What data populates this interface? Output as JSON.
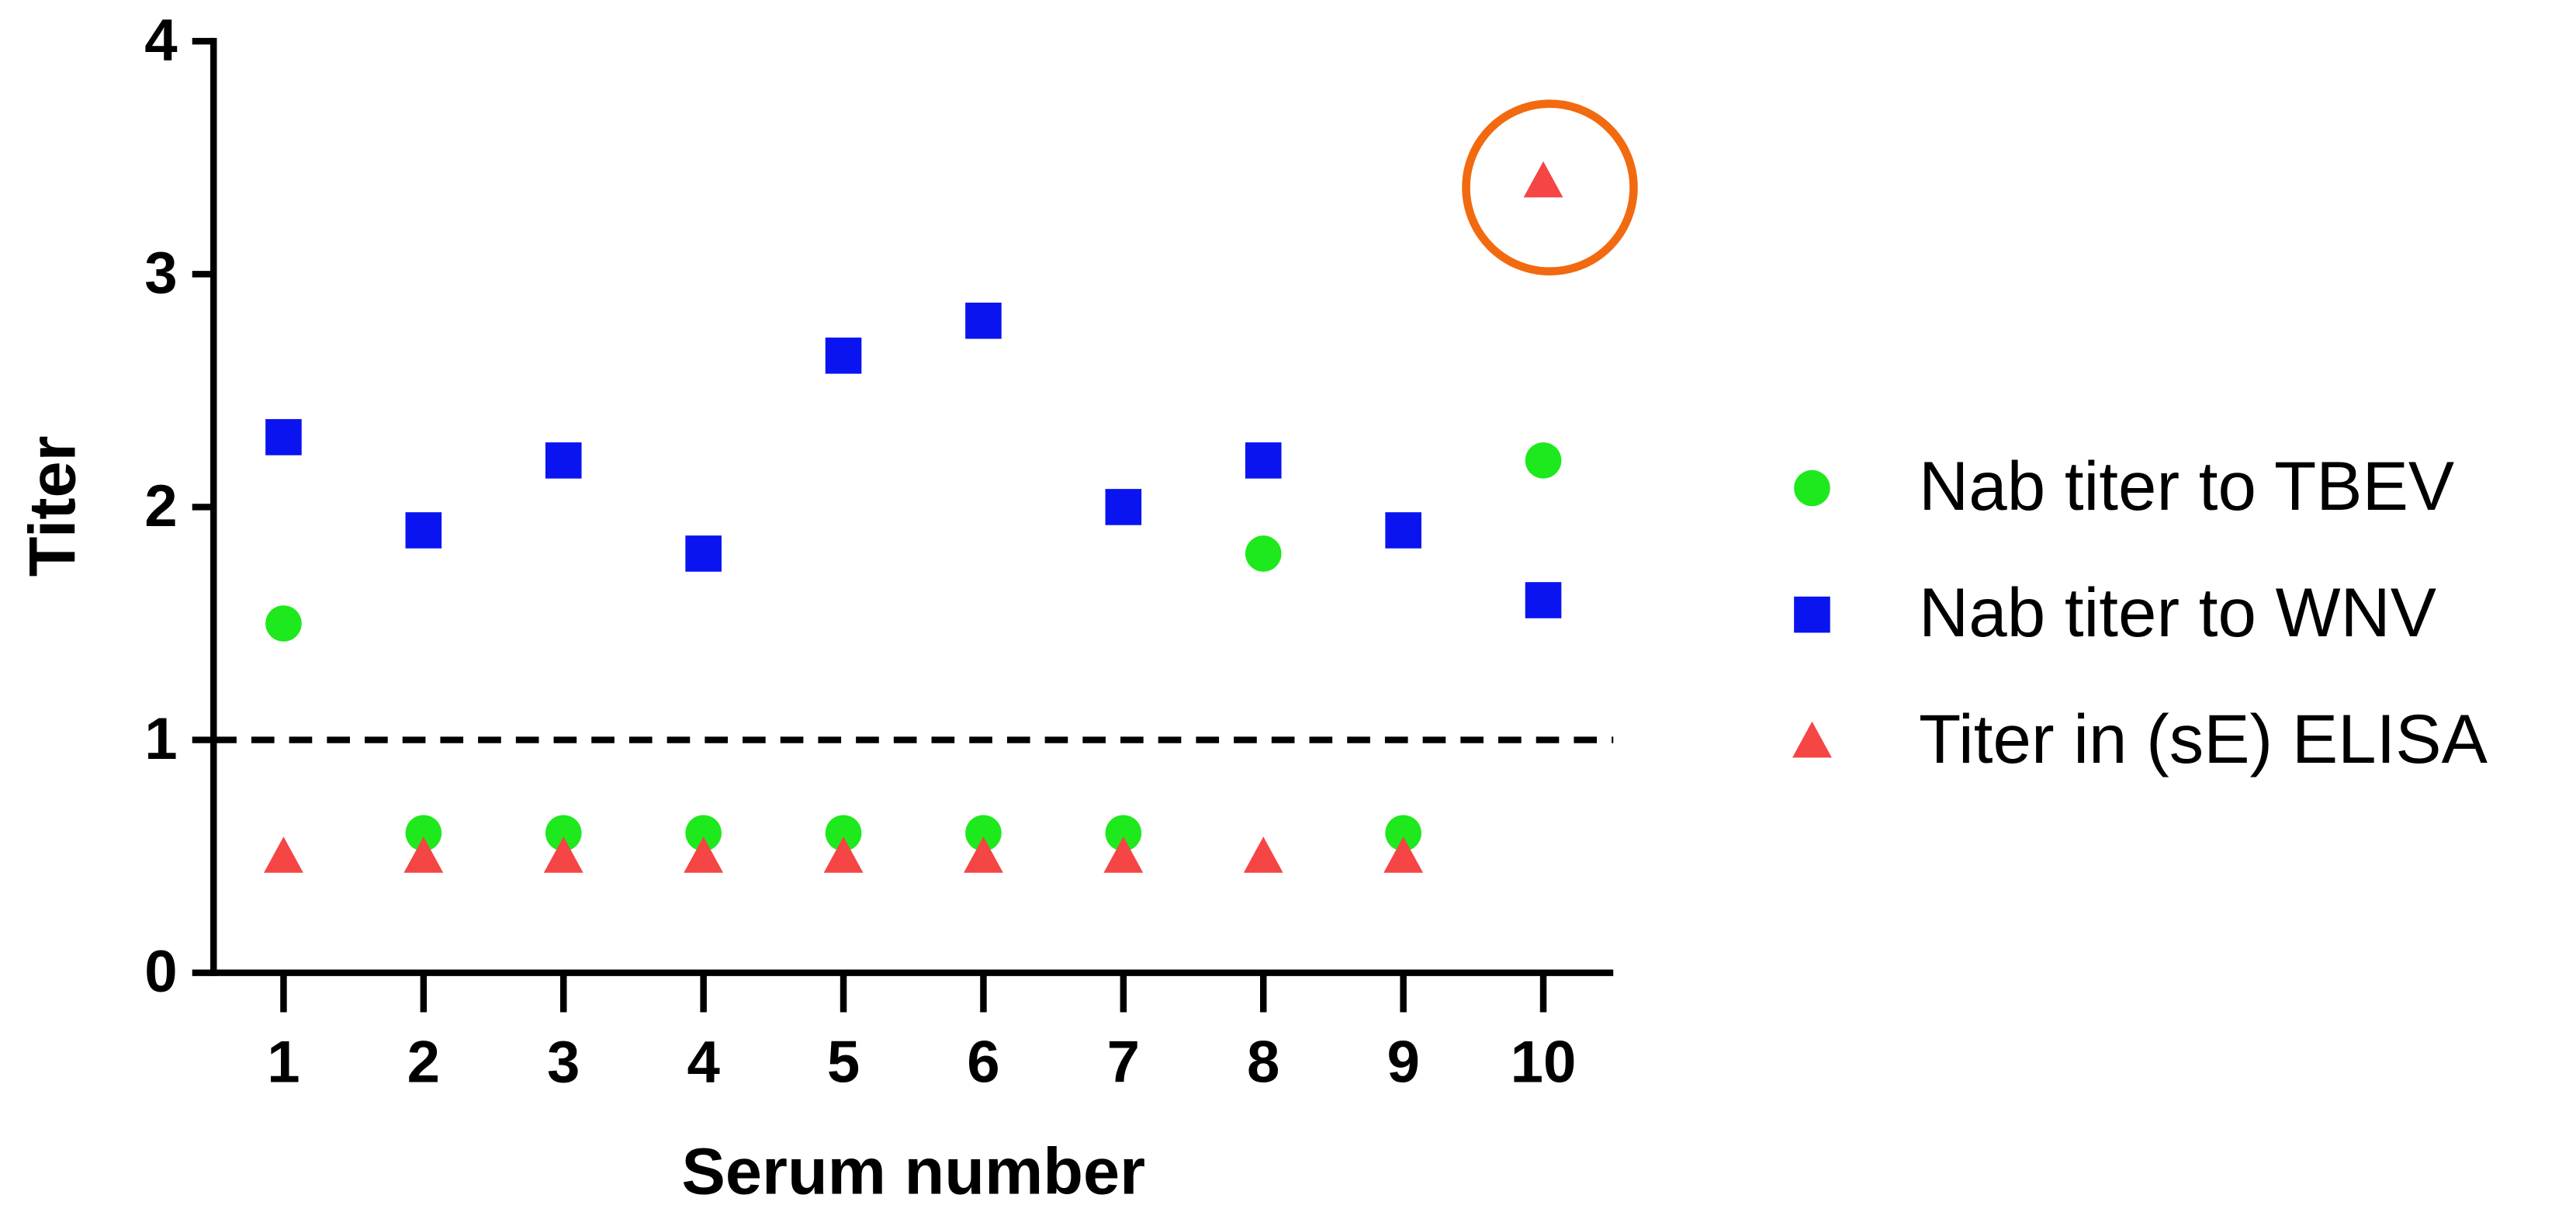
{
  "chart_data": {
    "type": "scatter",
    "x": [
      1,
      2,
      3,
      4,
      5,
      6,
      7,
      8,
      9,
      10
    ],
    "xlabel": "Serum number",
    "ylabel": "Titer",
    "xlim": [
      0.5,
      10.5
    ],
    "xticks": [
      1,
      2,
      3,
      4,
      5,
      6,
      7,
      8,
      9,
      10
    ],
    "ylim": [
      0,
      4
    ],
    "yticks": [
      0,
      1,
      2,
      3,
      4
    ],
    "reference_line": 1,
    "series": [
      {
        "name": "Nab titer to TBEV",
        "color": "#1de91d",
        "marker": "circle",
        "values": [
          1.5,
          0.6,
          0.6,
          0.6,
          0.6,
          0.6,
          0.6,
          1.8,
          0.6,
          2.2
        ]
      },
      {
        "name": "Nab titer to WNV",
        "color": "#0a14f0",
        "marker": "square",
        "values": [
          2.3,
          1.9,
          2.2,
          1.8,
          2.65,
          2.8,
          2.0,
          2.2,
          1.9,
          1.6
        ]
      },
      {
        "name": "Titer in (sE) ELISA",
        "color": "#f54545",
        "marker": "triangle",
        "values": [
          0.5,
          0.5,
          0.5,
          0.5,
          0.5,
          0.5,
          0.5,
          0.5,
          0.5,
          3.4
        ]
      }
    ],
    "highlight_color": "#f26a10"
  }
}
